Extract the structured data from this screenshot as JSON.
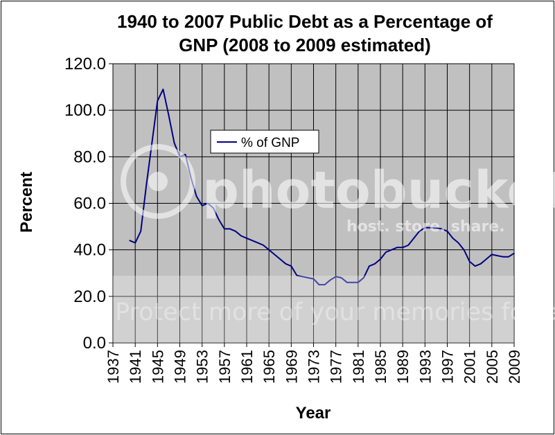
{
  "chart_data": {
    "type": "line",
    "title": "1940 to 2007 Public Debt as a Percentage of GNP (2008 to 2009 estimated)",
    "title_lines": [
      "1940 to 2007 Public Debt as a Percentage of",
      "GNP (2008 to 2009 estimated)"
    ],
    "xlabel": "Year",
    "ylabel": "Percent",
    "xlim": [
      1937,
      2009
    ],
    "ylim": [
      0,
      120
    ],
    "x_ticks": [
      "1937",
      "1941",
      "1945",
      "1949",
      "1953",
      "1957",
      "1961",
      "1965",
      "1969",
      "1973",
      "1977",
      "1981",
      "1985",
      "1989",
      "1993",
      "1997",
      "2001",
      "2005",
      "2009"
    ],
    "y_ticks": [
      "0.0",
      "20.0",
      "40.0",
      "60.0",
      "80.0",
      "100.0",
      "120.0"
    ],
    "grid": true,
    "legend_position": "upper-middle",
    "plot_background": "#c0c0c0",
    "series": [
      {
        "name": "% of GNP",
        "color": "#000080",
        "x": [
          1940,
          1941,
          1942,
          1943,
          1944,
          1945,
          1946,
          1947,
          1948,
          1949,
          1950,
          1951,
          1952,
          1953,
          1954,
          1955,
          1956,
          1957,
          1958,
          1959,
          1960,
          1961,
          1962,
          1963,
          1964,
          1965,
          1966,
          1967,
          1968,
          1969,
          1970,
          1971,
          1972,
          1973,
          1974,
          1975,
          1976,
          1977,
          1978,
          1979,
          1980,
          1981,
          1982,
          1983,
          1984,
          1985,
          1986,
          1987,
          1988,
          1989,
          1990,
          1991,
          1992,
          1993,
          1994,
          1995,
          1996,
          1997,
          1998,
          1999,
          2000,
          2001,
          2002,
          2003,
          2004,
          2005,
          2006,
          2007,
          2008,
          2009
        ],
        "values": [
          44,
          43,
          48,
          68,
          86,
          104,
          109,
          98,
          86,
          80,
          81,
          71,
          63,
          59,
          60,
          58,
          53,
          49,
          49,
          48,
          46,
          45,
          44,
          43,
          42,
          40,
          38,
          36,
          34,
          33,
          29,
          28.5,
          28,
          27.5,
          25,
          25,
          27,
          28.5,
          28,
          26,
          26,
          26,
          28,
          33,
          34,
          36,
          39,
          40,
          41,
          41,
          42,
          45,
          48,
          49.5,
          49.5,
          49.5,
          49,
          48,
          45,
          43,
          40,
          35,
          33,
          34,
          36,
          38,
          37.5,
          37,
          37,
          38.5
        ]
      }
    ]
  },
  "watermark": {
    "brand": "photobucket",
    "tagline": "host. store. share.",
    "banner": "Protect more of your memories for less!"
  }
}
